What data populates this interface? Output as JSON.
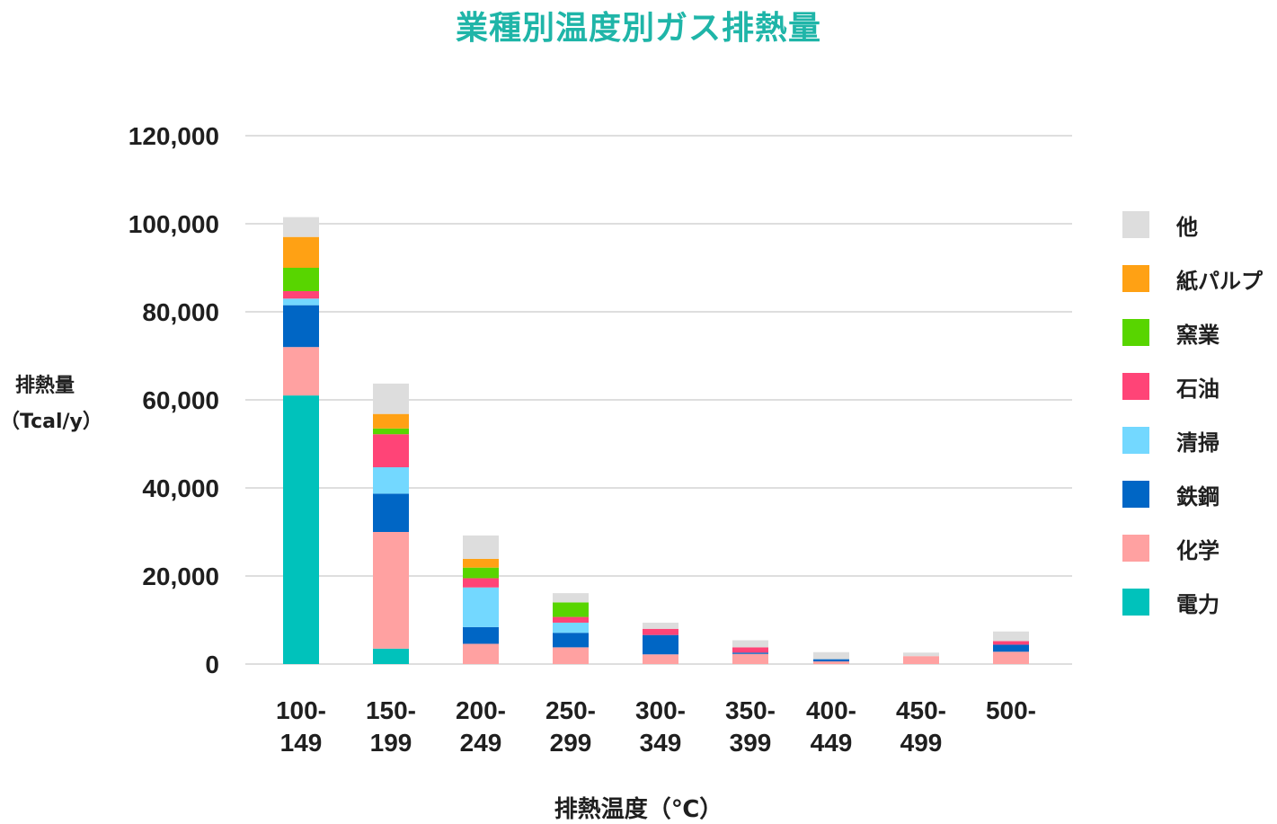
{
  "chart_data": {
    "type": "bar",
    "stacked": true,
    "title": "業種別温度別ガス排熱量",
    "ylabel": "排熱量（Tcal/y）",
    "xlabel": "排熱温度（℃）",
    "ylim": [
      0,
      120000
    ],
    "yticks": [
      "0",
      "20,000",
      "40,000",
      "60,000",
      "80,000",
      "100,000",
      "120,000"
    ],
    "ytick_values": [
      0,
      20000,
      40000,
      60000,
      80000,
      100000,
      120000
    ],
    "grid": true,
    "legend_position": "right",
    "categories": [
      [
        "100-",
        "149"
      ],
      [
        "150-",
        "199"
      ],
      [
        "200-",
        "249"
      ],
      [
        "250-",
        "299"
      ],
      [
        "300-",
        "349"
      ],
      [
        "350-",
        "399"
      ],
      [
        "400-",
        "449"
      ],
      [
        "450-",
        "499"
      ],
      [
        "500-",
        ""
      ]
    ],
    "series": [
      {
        "name": "電力",
        "color": "#00c2bb",
        "values": [
          61000,
          3500,
          0,
          0,
          0,
          0,
          0,
          0,
          0
        ]
      },
      {
        "name": "化学",
        "color": "#ffa1a1",
        "values": [
          11000,
          26500,
          4600,
          3800,
          2200,
          2300,
          600,
          1800,
          2800
        ]
      },
      {
        "name": "鉄鋼",
        "color": "#0066c5",
        "values": [
          9500,
          8700,
          3800,
          3300,
          4400,
          300,
          500,
          0,
          1600
        ]
      },
      {
        "name": "清掃",
        "color": "#73d8ff",
        "values": [
          1500,
          6000,
          9000,
          2300,
          0,
          0,
          0,
          0,
          0
        ]
      },
      {
        "name": "石油",
        "color": "#ff4477",
        "values": [
          1700,
          7500,
          2100,
          1300,
          1400,
          1200,
          0,
          0,
          800
        ]
      },
      {
        "name": "窯業",
        "color": "#58d500",
        "values": [
          5300,
          1300,
          2400,
          3300,
          0,
          0,
          0,
          0,
          0
        ]
      },
      {
        "name": "紙パルプ",
        "color": "#ffa114",
        "values": [
          7000,
          3300,
          2000,
          0,
          0,
          0,
          0,
          0,
          0
        ]
      },
      {
        "name": "他",
        "color": "#dddddd",
        "values": [
          4500,
          6900,
          5300,
          2100,
          1400,
          1600,
          1600,
          800,
          2200
        ]
      }
    ]
  }
}
